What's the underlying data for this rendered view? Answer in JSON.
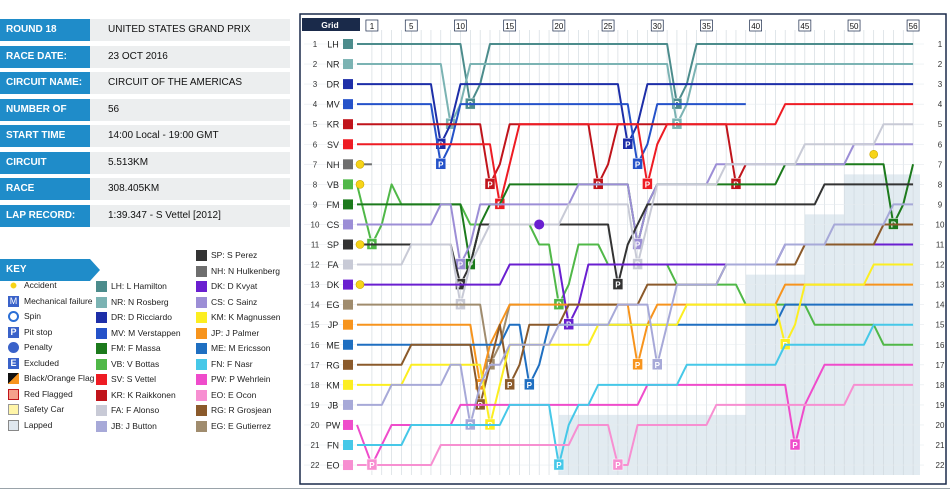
{
  "info": [
    {
      "label": "ROUND 18",
      "value": "UNITED STATES GRAND PRIX"
    },
    {
      "label": "RACE DATE:",
      "value": "23 OCT 2016"
    },
    {
      "label": "CIRCUIT NAME:",
      "value": "CIRCUIT OF THE AMERICAS"
    },
    {
      "label": "NUMBER OF LAPS:",
      "value": "56"
    },
    {
      "label": "START TIME",
      "value": "14:00 Local - 19:00 GMT"
    },
    {
      "label": "CIRCUIT LENGTH:",
      "value": "5.513KM"
    },
    {
      "label": "RACE DISTANCE:",
      "value": "308.405KM"
    },
    {
      "label": "LAP RECORD:",
      "value": "1:39.347 - S Vettel [2012]"
    }
  ],
  "key": {
    "title": "KEY",
    "items": [
      {
        "label": "Accident",
        "icon": "accident-icon"
      },
      {
        "label": "Mechanical failure",
        "icon": "mechanical-failure-icon"
      },
      {
        "label": "Spin",
        "icon": "spin-icon"
      },
      {
        "label": "Pit stop",
        "icon": "pit-stop-icon"
      },
      {
        "label": "Penalty",
        "icon": "penalty-icon"
      },
      {
        "label": "Excluded",
        "icon": "excluded-icon"
      },
      {
        "label": "Black/Orange Flag",
        "icon": "black-orange-flag-icon"
      },
      {
        "label": "Red Flagged",
        "icon": "red-flag-icon"
      },
      {
        "label": "Safety Car",
        "icon": "safety-car-icon"
      },
      {
        "label": "Lapped",
        "icon": "lapped-icon"
      }
    ]
  },
  "chart_data": {
    "type": "line",
    "title": "",
    "grid_label": "Grid",
    "laps": 56,
    "lap_ticks": [
      1,
      5,
      10,
      15,
      20,
      25,
      30,
      35,
      40,
      45,
      50,
      56
    ],
    "positions": [
      1,
      2,
      3,
      4,
      5,
      6,
      7,
      8,
      9,
      10,
      11,
      12,
      13,
      14,
      15,
      16,
      17,
      18,
      19,
      20,
      21,
      22
    ],
    "drivers": [
      {
        "code": "LH",
        "name": "L Hamilton",
        "color": "#4c8c8c",
        "grid": 1,
        "finish": 1
      },
      {
        "code": "NR",
        "name": "N Rosberg",
        "color": "#7bb3b3",
        "grid": 2,
        "finish": 2
      },
      {
        "code": "DR",
        "name": "D Ricciardo",
        "color": "#1d2ea8",
        "grid": 3,
        "finish": 3
      },
      {
        "code": "MV",
        "name": "M Verstappen",
        "color": "#2552c9",
        "grid": 4,
        "finish": null
      },
      {
        "code": "KR",
        "name": "K Raikkonen",
        "color": "#c0141b",
        "grid": 5,
        "finish": null
      },
      {
        "code": "SV",
        "name": "S Vettel",
        "color": "#ee1c24",
        "grid": 6,
        "finish": 4
      },
      {
        "code": "NH",
        "name": "N Hulkenberg",
        "color": "#6e6e6e",
        "grid": 7,
        "finish": null
      },
      {
        "code": "VB",
        "name": "V Bottas",
        "color": "#50b848",
        "grid": 8,
        "finish": 16
      },
      {
        "code": "FM",
        "name": "F Massa",
        "color": "#1c7a1c",
        "grid": 9,
        "finish": 7
      },
      {
        "code": "CS",
        "name": "C Sainz",
        "color": "#9c8ed6",
        "grid": 10,
        "finish": 6
      },
      {
        "code": "SP",
        "name": "S Perez",
        "color": "#333333",
        "grid": 11,
        "finish": 8
      },
      {
        "code": "FA",
        "name": "F Alonso",
        "color": "#c8cad6",
        "grid": 12,
        "finish": 5
      },
      {
        "code": "DK",
        "name": "D Kvyat",
        "color": "#6a1fd0",
        "grid": 13,
        "finish": 11
      },
      {
        "code": "EG",
        "name": "E Gutierrez",
        "color": "#a08c6e",
        "grid": 14,
        "finish": null
      },
      {
        "code": "JP",
        "name": "J Palmer",
        "color": "#f7941d",
        "grid": 15,
        "finish": 13
      },
      {
        "code": "ME",
        "name": "M Ericsson",
        "color": "#1f6fc1",
        "grid": 16,
        "finish": 14
      },
      {
        "code": "RG",
        "name": "R Grosjean",
        "color": "#8b5a2b",
        "grid": 17,
        "finish": 10
      },
      {
        "code": "KM",
        "name": "K Magnussen",
        "color": "#fcee21",
        "grid": 18,
        "finish": 12
      },
      {
        "code": "JB",
        "name": "J Button",
        "color": "#a7a9d8",
        "grid": 19,
        "finish": 9
      },
      {
        "code": "PW",
        "name": "P Wehrlein",
        "color": "#ef4ccb",
        "grid": 20,
        "finish": 17
      },
      {
        "code": "FN",
        "name": "F Nasr",
        "color": "#46c8e8",
        "grid": 21,
        "finish": 15
      },
      {
        "code": "EO",
        "name": "E Ocon",
        "color": "#f78fd1",
        "grid": 22,
        "finish": 18
      }
    ],
    "driver_key_order": [
      "LH",
      "NR",
      "DR",
      "MV",
      "FM",
      "VB",
      "SV",
      "KR",
      "FA",
      "JB",
      "SP",
      "NH",
      "DK",
      "CS",
      "KM",
      "JP",
      "ME",
      "FN",
      "PW",
      "EO",
      "RG",
      "EG"
    ],
    "pit_stops": [
      {
        "driver": "LH",
        "lap": 11
      },
      {
        "driver": "LH",
        "lap": 32
      },
      {
        "driver": "NR",
        "lap": 9
      },
      {
        "driver": "NR",
        "lap": 32
      },
      {
        "driver": "DR",
        "lap": 8
      },
      {
        "driver": "DR",
        "lap": 27
      },
      {
        "driver": "MV",
        "lap": 8
      },
      {
        "driver": "MV",
        "lap": 28
      },
      {
        "driver": "KR",
        "lap": 13
      },
      {
        "driver": "KR",
        "lap": 24
      },
      {
        "driver": "KR",
        "lap": 38
      },
      {
        "driver": "SV",
        "lap": 14
      },
      {
        "driver": "SV",
        "lap": 29
      },
      {
        "driver": "FM",
        "lap": 11
      },
      {
        "driver": "FM",
        "lap": 28
      },
      {
        "driver": "FM",
        "lap": 54
      },
      {
        "driver": "VB",
        "lap": 1
      },
      {
        "driver": "VB",
        "lap": 20
      },
      {
        "driver": "CS",
        "lap": 10
      },
      {
        "driver": "CS",
        "lap": 28
      },
      {
        "driver": "SP",
        "lap": 10
      },
      {
        "driver": "SP",
        "lap": 26
      },
      {
        "driver": "FA",
        "lap": 10
      },
      {
        "driver": "FA",
        "lap": 28
      },
      {
        "driver": "DK",
        "lap": 21
      },
      {
        "driver": "EG",
        "lap": 13
      },
      {
        "driver": "JP",
        "lap": 12
      },
      {
        "driver": "JP",
        "lap": 28
      },
      {
        "driver": "ME",
        "lap": 17
      },
      {
        "driver": "RG",
        "lap": 12
      },
      {
        "driver": "RG",
        "lap": 15
      },
      {
        "driver": "KM",
        "lap": 13
      },
      {
        "driver": "KM",
        "lap": 43
      },
      {
        "driver": "JB",
        "lap": 11
      },
      {
        "driver": "JB",
        "lap": 30
      },
      {
        "driver": "PW",
        "lap": 1
      },
      {
        "driver": "PW",
        "lap": 44
      },
      {
        "driver": "FN",
        "lap": 20
      },
      {
        "driver": "EO",
        "lap": 1
      },
      {
        "driver": "EO",
        "lap": 26
      }
    ],
    "penalties": [
      {
        "driver": "DK",
        "lap": 18
      }
    ],
    "retirements": [
      {
        "driver": "MV",
        "lap": 39,
        "reason": "Mechanical failure"
      },
      {
        "driver": "KR",
        "lap": 39
      },
      {
        "driver": "NH",
        "lap": 1,
        "reason": "Accident"
      },
      {
        "driver": "EG",
        "lap": 16
      }
    ],
    "incidents": [
      {
        "lap": 1,
        "type": "Accident",
        "drivers": [
          "NH",
          "VB",
          "SP",
          "DK"
        ]
      },
      {
        "lap": 52,
        "type": "Accident"
      }
    ]
  }
}
